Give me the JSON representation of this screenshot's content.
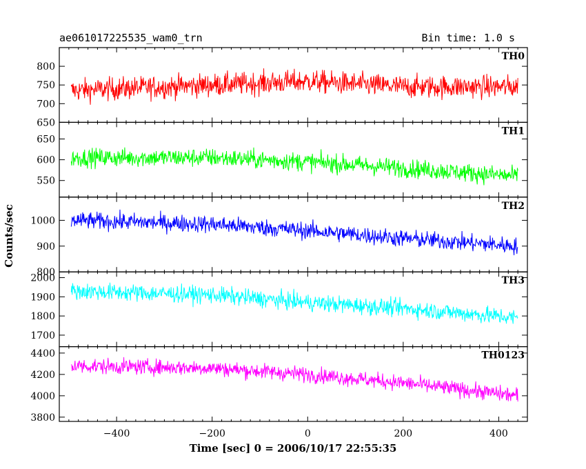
{
  "header": {
    "left": "ae061017225535_wam0_trn",
    "right": "Bin time: 1.0 s"
  },
  "chart_data": {
    "type": "line",
    "title": "ae061017225535_wam0_trn",
    "bin_time": "Bin time: 1.0 s",
    "xlabel": "Time [sec] 0 = 2006/10/17 22:55:35",
    "ylabel": "Counts/sec",
    "xlim": [
      -520,
      460
    ],
    "x_range": [
      -495,
      440
    ],
    "x_step": 1,
    "xticks": [
      -400,
      -200,
      0,
      200,
      400
    ],
    "xtick_labels": [
      "−400",
      "−200",
      "0",
      "200",
      "400"
    ],
    "panels": [
      {
        "name": "TH0",
        "color": "#ff0000",
        "ylim": [
          650,
          850
        ],
        "yticks": [
          650,
          700,
          750,
          800
        ],
        "ytick_labels": [
          "650",
          "700",
          "750",
          "800"
        ],
        "trend_x": [
          -495,
          -300,
          0,
          200,
          440
        ],
        "trend_y": [
          735,
          745,
          760,
          745,
          745
        ],
        "noise": 55
      },
      {
        "name": "TH1",
        "color": "#00ff00",
        "ylim": [
          510,
          690
        ],
        "yticks": [
          550,
          600,
          650
        ],
        "ytick_labels": [
          "550",
          "600",
          "650"
        ],
        "trend_x": [
          -495,
          -200,
          0,
          200,
          440
        ],
        "trend_y": [
          605,
          605,
          595,
          580,
          560
        ],
        "noise": 40
      },
      {
        "name": "TH2",
        "color": "#0000ff",
        "ylim": [
          800,
          1090
        ],
        "yticks": [
          800,
          900,
          1000
        ],
        "ytick_labels": [
          "800",
          "900",
          "1000"
        ],
        "trend_x": [
          -495,
          -200,
          0,
          200,
          440
        ],
        "trend_y": [
          1000,
          985,
          960,
          930,
          900
        ],
        "noise": 60
      },
      {
        "name": "TH3",
        "color": "#00ffff",
        "ylim": [
          1640,
          2030
        ],
        "yticks": [
          1700,
          1800,
          1900,
          2000
        ],
        "ytick_labels": [
          "1700",
          "1800",
          "1900",
          "2000"
        ],
        "trend_x": [
          -495,
          -200,
          0,
          200,
          440
        ],
        "trend_y": [
          1930,
          1910,
          1870,
          1840,
          1790
        ],
        "noise": 80
      },
      {
        "name": "TH0123",
        "color": "#ff00ff",
        "ylim": [
          3760,
          4460
        ],
        "yticks": [
          3800,
          4000,
          4200,
          4400
        ],
        "ytick_labels": [
          "3800",
          "4000",
          "4200",
          "4400"
        ],
        "trend_x": [
          -495,
          -200,
          0,
          200,
          440
        ],
        "trend_y": [
          4280,
          4260,
          4200,
          4120,
          4000
        ],
        "noise": 130
      }
    ]
  }
}
